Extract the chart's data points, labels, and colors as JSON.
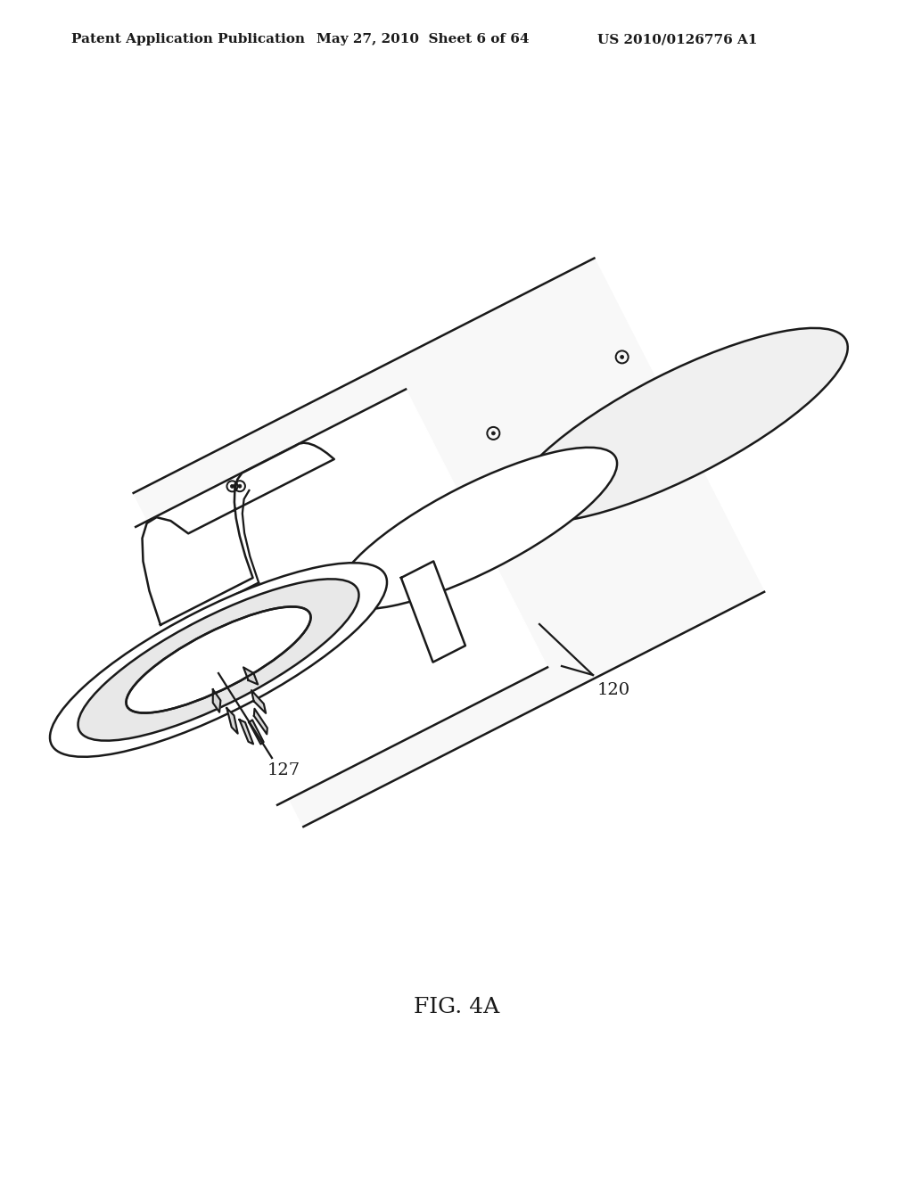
{
  "bg_color": "#ffffff",
  "line_color": "#1a1a1a",
  "lw": 1.8,
  "header_left": "Patent Application Publication",
  "header_mid": "May 27, 2010  Sheet 6 of 64",
  "header_right": "US 2010/0126776 A1",
  "fig_caption": "FIG. 4A",
  "label_120": "120",
  "label_127": "127",
  "header_fontsize": 11,
  "caption_fontsize": 18,
  "label_fontsize": 14,
  "cyl_fill": "#f8f8f8",
  "cap_fill": "#f0f0f0",
  "inner_fill": "#e8e8e8"
}
